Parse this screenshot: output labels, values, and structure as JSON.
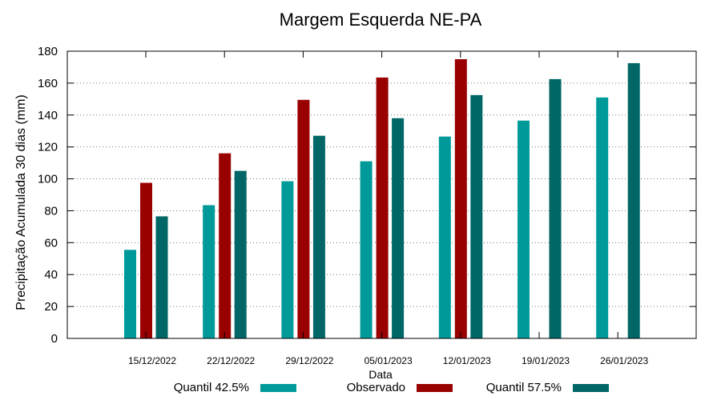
{
  "chart_data": {
    "type": "bar",
    "title": "Margem Esquerda NE-PA",
    "xlabel": "Data",
    "ylabel": "Precipitação Acumulada 30 dias (mm)",
    "ylim": [
      0,
      180
    ],
    "yticks": [
      0,
      20,
      40,
      60,
      80,
      100,
      120,
      140,
      160,
      180
    ],
    "grid": "horizontal dotted",
    "legend_position": "bottom",
    "categories": [
      "15/12/2022",
      "22/12/2022",
      "29/12/2022",
      "05/01/2023",
      "12/01/2023",
      "19/01/2023",
      "26/01/2023"
    ],
    "series": [
      {
        "name": "Quantil 42.5%",
        "color": "#009999",
        "values": [
          55.5,
          83.5,
          98.5,
          111,
          126.5,
          136.5,
          151
        ]
      },
      {
        "name": "Observado",
        "color": "#990000",
        "values": [
          97.5,
          116,
          149.5,
          163.5,
          175,
          null,
          null
        ]
      },
      {
        "name": "Quantil 57.5%",
        "color": "#006666",
        "values": [
          76.5,
          105,
          127,
          138,
          152.5,
          162.5,
          172.5
        ]
      }
    ]
  }
}
